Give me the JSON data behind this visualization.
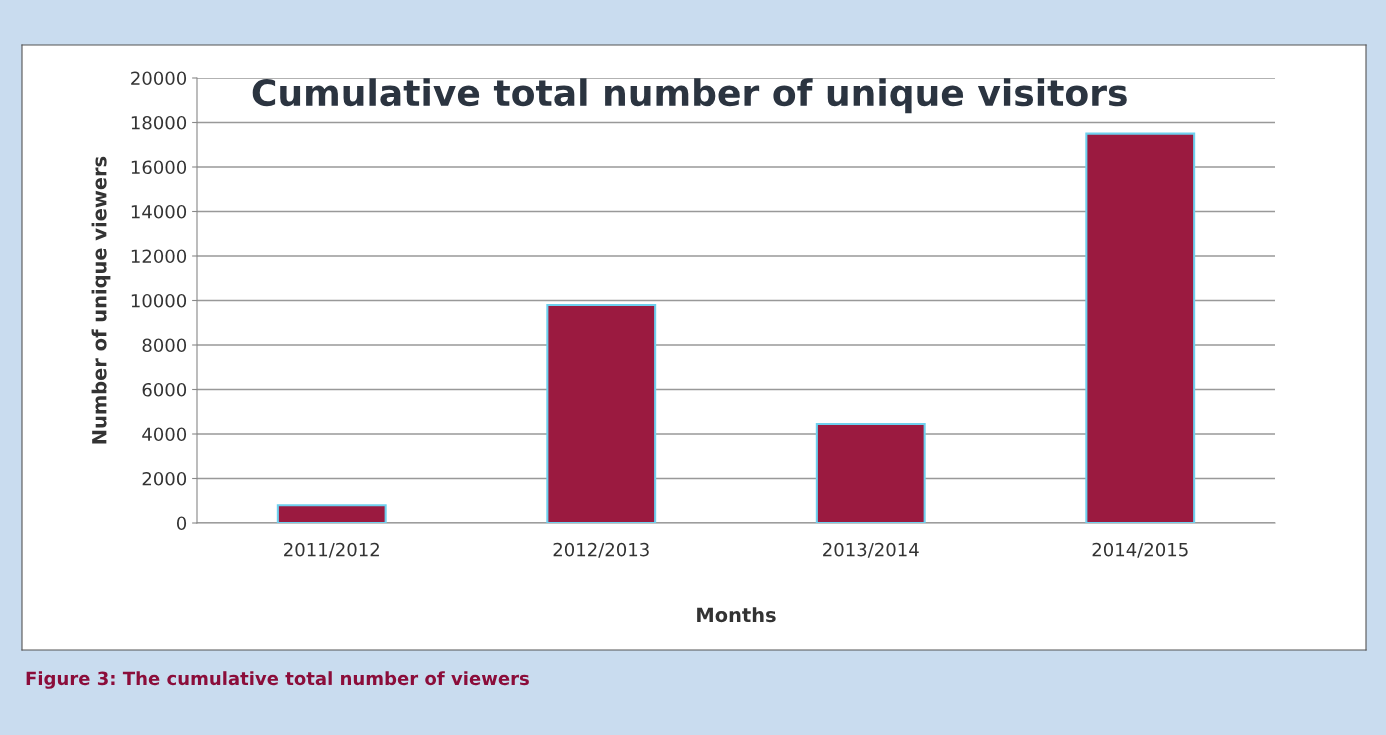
{
  "chart_data": {
    "type": "bar",
    "title": "Cumulative total number of unique visitors",
    "xlabel": "Months",
    "ylabel": "Number of unique viewers",
    "categories": [
      "2011/2012",
      "2012/2013",
      "2013/2014",
      "2014/2015"
    ],
    "values": [
      800,
      9800,
      4450,
      17500
    ],
    "color": "#9b1a40",
    "ylim": [
      0,
      20000
    ],
    "yticks": [
      0,
      2000,
      4000,
      6000,
      8000,
      10000,
      12000,
      14000,
      16000,
      18000,
      20000
    ],
    "grid": "y",
    "legend": false,
    "annotations": [
      "Figure 3: The cumulative total number of viewers"
    ]
  }
}
